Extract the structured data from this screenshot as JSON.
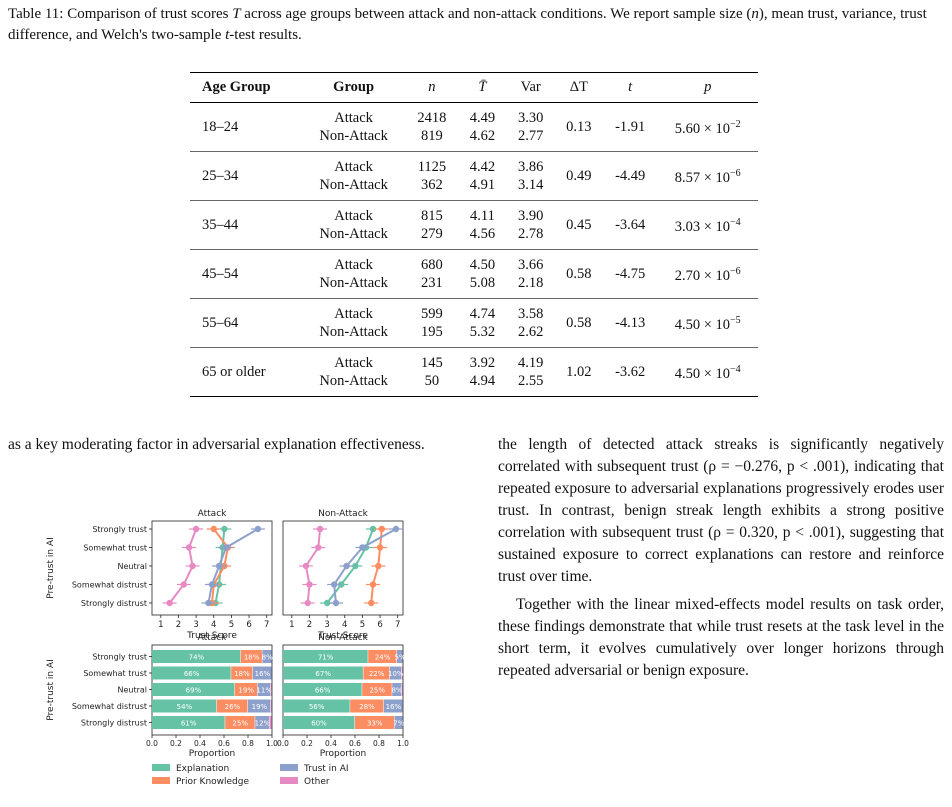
{
  "caption": {
    "prefix": "Table 11: Comparison of trust scores ",
    "var_T": "T",
    "part2": " across age groups between attack and non-attack conditions. We report sample size (",
    "var_n": "n",
    "part3": "), mean trust, variance, trust difference, and Welch's two-sample ",
    "var_t": "t",
    "part4": "-test results."
  },
  "table": {
    "headers": [
      "Age Group",
      "Group",
      "n",
      "T̄",
      "Var",
      "ΔT",
      "t",
      "p"
    ],
    "rows": [
      {
        "age": "18–24",
        "groups": [
          "Attack",
          "Non-Attack"
        ],
        "n": [
          "2418",
          "819"
        ],
        "mean": [
          "4.49",
          "4.62"
        ],
        "var": [
          "3.30",
          "2.77"
        ],
        "dT": "0.13",
        "t": "-1.91",
        "p_base": "5.60 × 10",
        "p_exp": "−2"
      },
      {
        "age": "25–34",
        "groups": [
          "Attack",
          "Non-Attack"
        ],
        "n": [
          "1125",
          "362"
        ],
        "mean": [
          "4.42",
          "4.91"
        ],
        "var": [
          "3.86",
          "3.14"
        ],
        "dT": "0.49",
        "t": "-4.49",
        "p_base": "8.57 × 10",
        "p_exp": "−6"
      },
      {
        "age": "35–44",
        "groups": [
          "Attack",
          "Non-Attack"
        ],
        "n": [
          "815",
          "279"
        ],
        "mean": [
          "4.11",
          "4.56"
        ],
        "var": [
          "3.90",
          "2.78"
        ],
        "dT": "0.45",
        "t": "-3.64",
        "p_base": "3.03 × 10",
        "p_exp": "−4"
      },
      {
        "age": "45–54",
        "groups": [
          "Attack",
          "Non-Attack"
        ],
        "n": [
          "680",
          "231"
        ],
        "mean": [
          "4.50",
          "5.08"
        ],
        "var": [
          "3.66",
          "2.18"
        ],
        "dT": "0.58",
        "t": "-4.75",
        "p_base": "2.70 × 10",
        "p_exp": "−6"
      },
      {
        "age": "55–64",
        "groups": [
          "Attack",
          "Non-Attack"
        ],
        "n": [
          "599",
          "195"
        ],
        "mean": [
          "4.74",
          "5.32"
        ],
        "var": [
          "3.58",
          "2.62"
        ],
        "dT": "0.58",
        "t": "-4.13",
        "p_base": "4.50 × 10",
        "p_exp": "−5"
      },
      {
        "age": "65 or older",
        "groups": [
          "Attack",
          "Non-Attack"
        ],
        "n": [
          "145",
          "50"
        ],
        "mean": [
          "3.92",
          "4.94"
        ],
        "var": [
          "4.19",
          "2.55"
        ],
        "dT": "1.02",
        "t": "-3.62",
        "p_base": "4.50 × 10",
        "p_exp": "−4"
      }
    ]
  },
  "left_text": "as a key moderating factor in adversarial explanation effectiveness.",
  "right_text": {
    "p1": "the length of detected attack streaks is significantly negatively correlated with subsequent trust (ρ = −0.276, p < .001), indicating that repeated exposure to adversarial explanations progressively erodes user trust. In contrast, benign streak length exhibits a strong positive correlation with subsequent trust (ρ = 0.320, p < .001), suggesting that sustained exposure to correct explanations can restore and reinforce trust over time.",
    "p2": "Together with the linear mixed-effects model results on task order, these findings demonstrate that while trust resets at the task level in the short term, it evolves cumulatively over longer horizons through repeated adversarial or benign exposure."
  },
  "chart_data": [
    {
      "type": "line",
      "title": "Attack",
      "xlabel": "Trust Score",
      "ylabel": "Pre-trust in AI",
      "xlim": [
        0.5,
        7.3
      ],
      "xticks": [
        "1",
        "2",
        "3",
        "4",
        "5",
        "6",
        "7"
      ],
      "categories": [
        "Strongly trust",
        "Somewhat trust",
        "Neutral",
        "Somewhat distrust",
        "Strongly distrust"
      ],
      "series": [
        {
          "name": "Explanation",
          "color": "#66c2a5",
          "values": [
            4.6,
            4.5,
            4.4,
            4.3,
            4.1
          ]
        },
        {
          "name": "Prior Knowledge",
          "color": "#fc8d62",
          "values": [
            4.0,
            4.8,
            4.6,
            4.0,
            3.9
          ]
        },
        {
          "name": "Trust in AI",
          "color": "#8da0cb",
          "values": [
            6.5,
            4.7,
            4.3,
            3.9,
            3.7
          ]
        },
        {
          "name": "Other",
          "color": "#e78ac3",
          "values": [
            3.0,
            2.6,
            2.8,
            2.3,
            1.5
          ]
        }
      ]
    },
    {
      "type": "line",
      "title": "Non-Attack",
      "xlabel": "Trust Score",
      "xlim": [
        0.5,
        7.3
      ],
      "xticks": [
        "1",
        "2",
        "3",
        "4",
        "5",
        "6",
        "7"
      ],
      "categories": [
        "Strongly trust",
        "Somewhat trust",
        "Neutral",
        "Somewhat distrust",
        "Strongly distrust"
      ],
      "series": [
        {
          "name": "Explanation",
          "color": "#66c2a5",
          "values": [
            5.6,
            5.2,
            4.6,
            3.8,
            3.0
          ]
        },
        {
          "name": "Prior Knowledge",
          "color": "#fc8d62",
          "values": [
            6.1,
            6.0,
            5.9,
            5.6,
            5.5
          ]
        },
        {
          "name": "Trust in AI",
          "color": "#8da0cb",
          "values": [
            6.9,
            5.0,
            4.1,
            3.4,
            3.5
          ]
        },
        {
          "name": "Other",
          "color": "#e78ac3",
          "values": [
            2.6,
            2.5,
            1.8,
            2.0,
            1.9
          ]
        }
      ]
    },
    {
      "type": "bar",
      "title": "Attack",
      "xlabel": "Proportion",
      "ylabel": "Pre-trust in AI",
      "xticks": [
        "0.0",
        "0.2",
        "0.4",
        "0.6",
        "0.8",
        "1.0"
      ],
      "categories": [
        "Strongly trust",
        "Somewhat trust",
        "Neutral",
        "Somewhat distrust",
        "Strongly distrust"
      ],
      "series": [
        {
          "name": "Explanation",
          "color": "#66c2a5",
          "values": [
            0.74,
            0.66,
            0.69,
            0.54,
            0.61
          ],
          "labels": [
            "74%",
            "66%",
            "69%",
            "54%",
            "61%"
          ]
        },
        {
          "name": "Prior Knowledge",
          "color": "#fc8d62",
          "values": [
            0.18,
            0.18,
            0.19,
            0.26,
            0.25
          ],
          "labels": [
            "18%",
            "18%",
            "19%",
            "26%",
            "25%"
          ]
        },
        {
          "name": "Trust in AI",
          "color": "#8da0cb",
          "values": [
            0.08,
            0.16,
            0.11,
            0.19,
            0.12
          ],
          "labels": [
            "8%",
            "16%",
            "11%",
            "19%",
            "12%"
          ]
        },
        {
          "name": "Other",
          "color": "#e78ac3",
          "values": [
            0.0,
            0.0,
            0.01,
            0.01,
            0.02
          ],
          "labels": [
            "",
            "",
            "",
            "",
            ""
          ]
        }
      ]
    },
    {
      "type": "bar",
      "title": "Non-Attack",
      "xlabel": "Proportion",
      "xticks": [
        "0.0",
        "0.2",
        "0.4",
        "0.6",
        "0.8",
        "1.0"
      ],
      "categories": [
        "Strongly trust",
        "Somewhat trust",
        "Neutral",
        "Somewhat distrust",
        "Strongly distrust"
      ],
      "series": [
        {
          "name": "Explanation",
          "color": "#66c2a5",
          "values": [
            0.71,
            0.67,
            0.66,
            0.56,
            0.6
          ],
          "labels": [
            "71%",
            "67%",
            "66%",
            "56%",
            "60%"
          ]
        },
        {
          "name": "Prior Knowledge",
          "color": "#fc8d62",
          "values": [
            0.24,
            0.22,
            0.25,
            0.28,
            0.33
          ],
          "labels": [
            "24%",
            "22%",
            "25%",
            "28%",
            "33%"
          ]
        },
        {
          "name": "Trust in AI",
          "color": "#8da0cb",
          "values": [
            0.05,
            0.1,
            0.08,
            0.16,
            0.07
          ],
          "labels": [
            "5%",
            "10%",
            "8%",
            "16%",
            "7%"
          ]
        },
        {
          "name": "Other",
          "color": "#e78ac3",
          "values": [
            0.0,
            0.01,
            0.01,
            0.0,
            0.0
          ],
          "labels": [
            "",
            "",
            "",
            "",
            ""
          ]
        }
      ]
    }
  ],
  "legend": [
    "Explanation",
    "Prior Knowledge",
    "Trust in AI",
    "Other"
  ]
}
